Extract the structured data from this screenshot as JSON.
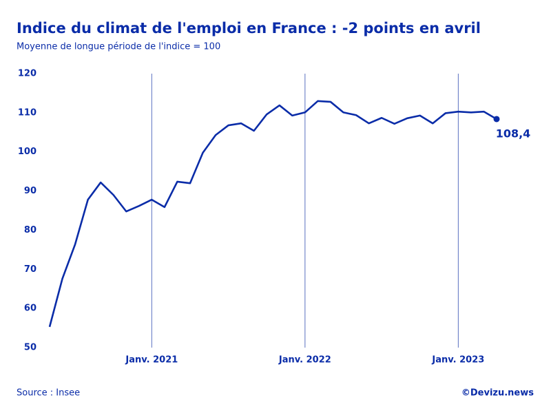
{
  "chart_data": {
    "type": "line",
    "title": "Indice du climat de l'emploi en France : -2 points en avril",
    "subtitle": "Moyenne de longue période de l'indice = 100",
    "source": "Source : Insee",
    "credit": "©Devizu.news",
    "categories": [
      null,
      null,
      null,
      null,
      null,
      null,
      null,
      null,
      "Janv. 2021",
      null,
      null,
      null,
      null,
      null,
      null,
      null,
      null,
      null,
      null,
      null,
      "Janv. 2022",
      null,
      null,
      null,
      null,
      null,
      null,
      null,
      null,
      null,
      null,
      null,
      "Janv. 2023",
      null,
      null,
      null
    ],
    "series": [
      {
        "name": "Indice du climat de l'emploi",
        "color": "#0a2ca8",
        "values": [
          55.3,
          67.6,
          76.4,
          87.8,
          92.2,
          89.0,
          84.8,
          86.2,
          87.8,
          85.9,
          92.4,
          92.0,
          99.8,
          104.3,
          106.8,
          107.3,
          105.4,
          109.6,
          111.9,
          109.3,
          110.1,
          113.0,
          112.8,
          110.1,
          109.4,
          107.3,
          108.7,
          107.2,
          108.6,
          109.3,
          107.3,
          109.9,
          110.3,
          110.1,
          110.3,
          108.4
        ],
        "value_labels": [
          null,
          null,
          null,
          null,
          null,
          null,
          null,
          null,
          null,
          null,
          null,
          null,
          null,
          null,
          null,
          null,
          null,
          null,
          null,
          null,
          null,
          null,
          null,
          null,
          null,
          null,
          null,
          null,
          null,
          null,
          null,
          null,
          null,
          null,
          null,
          "108,4"
        ]
      }
    ],
    "ylim": [
      50,
      120
    ],
    "yticks": [
      50,
      60,
      70,
      80,
      90,
      100,
      110,
      120
    ],
    "xgrid": true
  }
}
